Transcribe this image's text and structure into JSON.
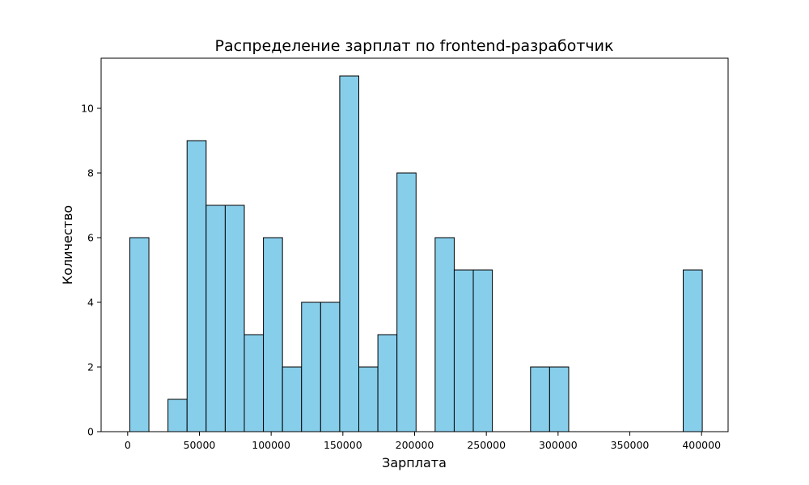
{
  "chart_data": {
    "type": "bar",
    "title": "Распределение зарплат по frontend-разработчик",
    "xlabel": "Зарплата",
    "ylabel": "Количество",
    "x_ticks": [
      "0",
      "50000",
      "100000",
      "150000",
      "200000",
      "250000",
      "300000",
      "350000",
      "400000"
    ],
    "y_ticks": [
      "0",
      "2",
      "4",
      "6",
      "8",
      "10"
    ],
    "xlim": [
      -18500,
      418500
    ],
    "ylim": [
      0,
      11.55
    ],
    "bins": [
      {
        "start": 1500,
        "end": 14800,
        "count": 6
      },
      {
        "start": 14800,
        "end": 28100,
        "count": 0
      },
      {
        "start": 28100,
        "end": 41400,
        "count": 1
      },
      {
        "start": 41400,
        "end": 54700,
        "count": 9
      },
      {
        "start": 54700,
        "end": 68000,
        "count": 7
      },
      {
        "start": 68000,
        "end": 81300,
        "count": 7
      },
      {
        "start": 81300,
        "end": 94600,
        "count": 3
      },
      {
        "start": 94600,
        "end": 107900,
        "count": 6
      },
      {
        "start": 107900,
        "end": 121200,
        "count": 2
      },
      {
        "start": 121200,
        "end": 134500,
        "count": 4
      },
      {
        "start": 134500,
        "end": 147800,
        "count": 4
      },
      {
        "start": 147800,
        "end": 161100,
        "count": 11
      },
      {
        "start": 161100,
        "end": 174400,
        "count": 2
      },
      {
        "start": 174400,
        "end": 187700,
        "count": 3
      },
      {
        "start": 187700,
        "end": 201000,
        "count": 8
      },
      {
        "start": 201000,
        "end": 214300,
        "count": 0
      },
      {
        "start": 214300,
        "end": 227600,
        "count": 6
      },
      {
        "start": 227600,
        "end": 240900,
        "count": 5
      },
      {
        "start": 240900,
        "end": 254200,
        "count": 5
      },
      {
        "start": 254200,
        "end": 267500,
        "count": 0
      },
      {
        "start": 267500,
        "end": 280800,
        "count": 0
      },
      {
        "start": 280800,
        "end": 294100,
        "count": 2
      },
      {
        "start": 294100,
        "end": 307400,
        "count": 2
      },
      {
        "start": 307400,
        "end": 320700,
        "count": 0
      },
      {
        "start": 320700,
        "end": 334000,
        "count": 0
      },
      {
        "start": 334000,
        "end": 347300,
        "count": 0
      },
      {
        "start": 347300,
        "end": 360600,
        "count": 0
      },
      {
        "start": 360600,
        "end": 373900,
        "count": 0
      },
      {
        "start": 373900,
        "end": 387200,
        "count": 0
      },
      {
        "start": 387200,
        "end": 400500,
        "count": 5
      }
    ],
    "bar_color": "#87ceeb",
    "edge_color": "#000000",
    "grid": false,
    "legend": "none"
  }
}
